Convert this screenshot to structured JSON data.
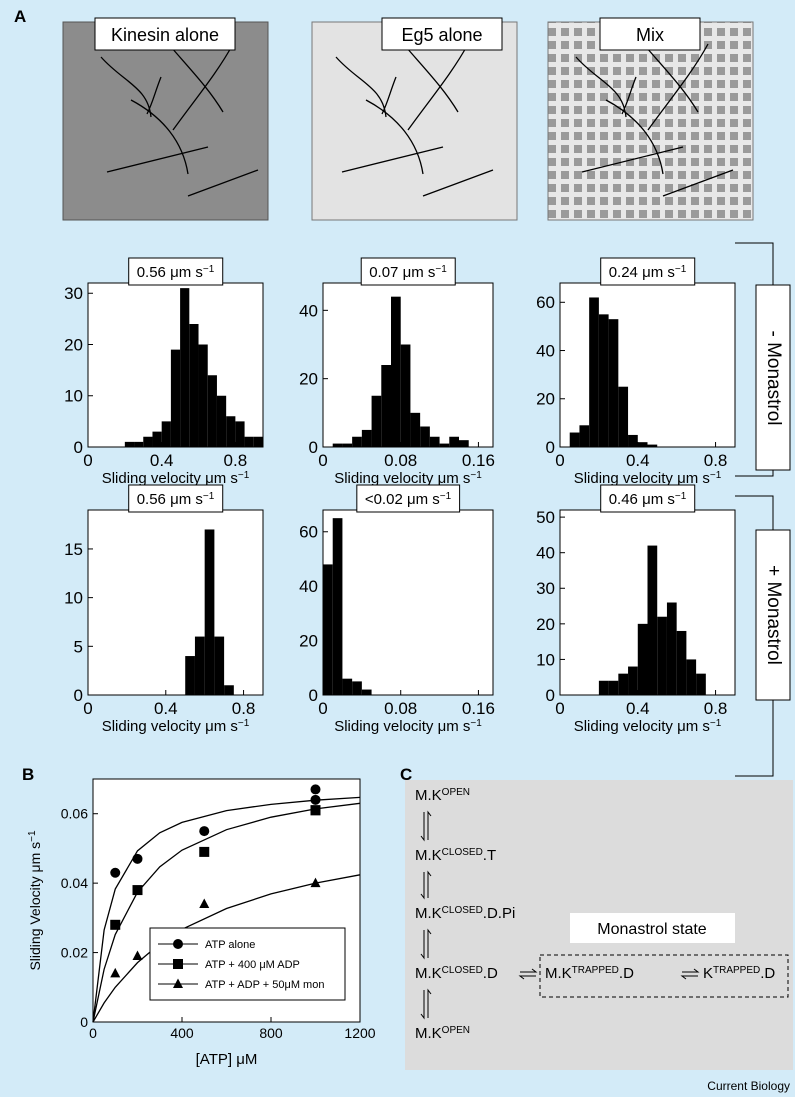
{
  "panel_labels": [
    "A",
    "B",
    "C"
  ],
  "schematics": [
    "Kinesin alone",
    "Eg5 alone",
    "Mix"
  ],
  "row_labels": [
    "- Monastrol",
    "+ Monastrol"
  ],
  "chart_data": [
    {
      "type": "histogram",
      "annotation": {
        "text": "0.56 μm s",
        "sup": "−1"
      },
      "x_label": {
        "text": "Sliding velocity μm s",
        "sup": "−1"
      },
      "color": "#000000",
      "bins": [
        0.2,
        0.25,
        0.3,
        0.35,
        0.4,
        0.45,
        0.5,
        0.55,
        0.6,
        0.65,
        0.7,
        0.75,
        0.8,
        0.85,
        0.9,
        0.95
      ],
      "counts": [
        1,
        1,
        2,
        3,
        5,
        19,
        31,
        24,
        20,
        14,
        10,
        6,
        5,
        2,
        2
      ],
      "xlim": [
        0,
        0.95
      ],
      "xticks": [
        0,
        0.4,
        0.8
      ],
      "ylim": [
        0,
        32
      ],
      "yticks": [
        0,
        10,
        20,
        30
      ]
    },
    {
      "type": "histogram",
      "annotation": {
        "text": "0.07 μm s",
        "sup": "−1"
      },
      "x_label": {
        "text": "Sliding velocity μm s",
        "sup": "−1"
      },
      "color": "#000000",
      "bins": [
        0.01,
        0.02,
        0.03,
        0.04,
        0.05,
        0.06,
        0.07,
        0.08,
        0.09,
        0.1,
        0.11,
        0.12,
        0.13,
        0.14,
        0.15
      ],
      "counts": [
        1,
        1,
        3,
        5,
        15,
        24,
        44,
        30,
        10,
        6,
        3,
        1,
        3,
        2
      ],
      "xlim": [
        0,
        0.175
      ],
      "xticks": [
        0,
        0.08,
        0.16
      ],
      "ylim": [
        0,
        48
      ],
      "yticks": [
        0,
        20,
        40
      ]
    },
    {
      "type": "histogram",
      "annotation": {
        "text": "0.24 μm s",
        "sup": "−1"
      },
      "x_label": {
        "text": "Sliding velocity μm s",
        "sup": "−1"
      },
      "color": "#000000",
      "bins": [
        0.05,
        0.1,
        0.15,
        0.2,
        0.25,
        0.3,
        0.35,
        0.4,
        0.45,
        0.5
      ],
      "counts": [
        6,
        9,
        62,
        55,
        53,
        25,
        5,
        2,
        1
      ],
      "xlim": [
        0,
        0.9
      ],
      "xticks": [
        0,
        0.4,
        0.8
      ],
      "ylim": [
        0,
        68
      ],
      "yticks": [
        0,
        20,
        40,
        60
      ]
    },
    {
      "type": "histogram",
      "annotation": {
        "text": "0.56 μm s",
        "sup": "−1"
      },
      "x_label": {
        "text": "Sliding velocity μm s",
        "sup": "−1"
      },
      "color": "#000000",
      "bins": [
        0.5,
        0.55,
        0.6,
        0.65,
        0.7,
        0.75
      ],
      "counts": [
        4,
        6,
        17,
        6,
        1
      ],
      "xlim": [
        0,
        0.9
      ],
      "xticks": [
        0,
        0.4,
        0.8
      ],
      "ylim": [
        0,
        19
      ],
      "yticks": [
        0,
        5,
        10,
        15
      ]
    },
    {
      "type": "histogram",
      "annotation": {
        "text": "<0.02 μm s",
        "sup": "−1"
      },
      "x_label": {
        "text": "Sliding velocity μm s",
        "sup": "−1"
      },
      "color": "#000000",
      "bins": [
        0,
        0.01,
        0.02,
        0.03,
        0.04,
        0.05
      ],
      "counts": [
        48,
        65,
        6,
        5,
        2
      ],
      "xlim": [
        0,
        0.175
      ],
      "xticks": [
        0,
        0.08,
        0.16
      ],
      "ylim": [
        0,
        68
      ],
      "yticks": [
        0,
        20,
        40,
        60
      ]
    },
    {
      "type": "histogram",
      "annotation": {
        "text": "0.46 μm s",
        "sup": "−1"
      },
      "x_label": {
        "text": "Sliding velocity μm s",
        "sup": "−1"
      },
      "color": "#000000",
      "bins": [
        0.2,
        0.25,
        0.3,
        0.35,
        0.4,
        0.45,
        0.5,
        0.55,
        0.6,
        0.65,
        0.7,
        0.75
      ],
      "counts": [
        4,
        4,
        6,
        8,
        20,
        42,
        22,
        26,
        18,
        10,
        6
      ],
      "xlim": [
        0,
        0.9
      ],
      "xticks": [
        0,
        0.4,
        0.8
      ],
      "ylim": [
        0,
        52
      ],
      "yticks": [
        0,
        10,
        20,
        30,
        40,
        50
      ]
    },
    {
      "type": "scatter",
      "x_label": "[ATP] μM",
      "y_label": {
        "text": "Sliding Velocity μm s",
        "sup": "−1"
      },
      "legend": "lower right",
      "xlim": [
        0,
        1200
      ],
      "xticks": [
        0,
        400,
        800,
        1200
      ],
      "ylim": [
        0,
        0.07
      ],
      "yticks": [
        0,
        0.02,
        0.04,
        0.06
      ],
      "series": [
        {
          "name": "ATP alone",
          "marker": "circle",
          "color": "#000000",
          "x": [
            100,
            200,
            500,
            1000,
            1000
          ],
          "values": [
            0.043,
            0.047,
            0.055,
            0.067,
            0.064
          ],
          "fit": {
            "x": [
              0,
              50,
              100,
              200,
              300,
              400,
              600,
              800,
              1000,
              1200
            ],
            "values": [
              0,
              0.0265,
              0.0383,
              0.0493,
              0.0545,
              0.0575,
              0.0609,
              0.0627,
              0.0639,
              0.0647
            ]
          }
        },
        {
          "name": "ATP + 400 μM ADP",
          "marker": "square",
          "color": "#000000",
          "x": [
            100,
            200,
            500,
            1000,
            1000
          ],
          "values": [
            0.028,
            0.038,
            0.049,
            0.061,
            0.061
          ],
          "fit": {
            "x": [
              0,
              50,
              100,
              200,
              300,
              400,
              600,
              800,
              1000,
              1200
            ],
            "values": [
              0,
              0.0152,
              0.0252,
              0.0374,
              0.0447,
              0.0495,
              0.0554,
              0.059,
              0.0614,
              0.063
            ]
          }
        },
        {
          "name": "ATP + ADP + 50μM mon",
          "marker": "triangle",
          "color": "#000000",
          "x": [
            100,
            200,
            500,
            1000
          ],
          "values": [
            0.014,
            0.019,
            0.034,
            0.04
          ],
          "fit": {
            "x": [
              0,
              50,
              100,
              200,
              300,
              400,
              600,
              800,
              1000,
              1200
            ],
            "values": [
              0,
              0.0055,
              0.01,
              0.0171,
              0.0225,
              0.0267,
              0.0327,
              0.0369,
              0.04,
              0.0424
            ]
          }
        }
      ]
    }
  ],
  "diagram": {
    "box_label": "Monastrol state",
    "states": [
      {
        "base": "M.K",
        "sup": "OPEN"
      },
      {
        "base": "M.K",
        "sup": "CLOSED",
        "suffix": ".T"
      },
      {
        "base": "M.K",
        "sup": "CLOSED",
        "suffix": ".D.Pi"
      },
      {
        "base": "M.K",
        "sup": "CLOSED",
        "suffix": ".D"
      },
      {
        "base": "M.K",
        "sup": "OPEN"
      }
    ],
    "trapped": [
      {
        "base": "M.K",
        "sup": "TRAPPED",
        "suffix": ".D"
      },
      {
        "base": "K",
        "sup": "TRAPPED",
        "suffix": ".D"
      }
    ]
  },
  "credit": "Current Biology"
}
